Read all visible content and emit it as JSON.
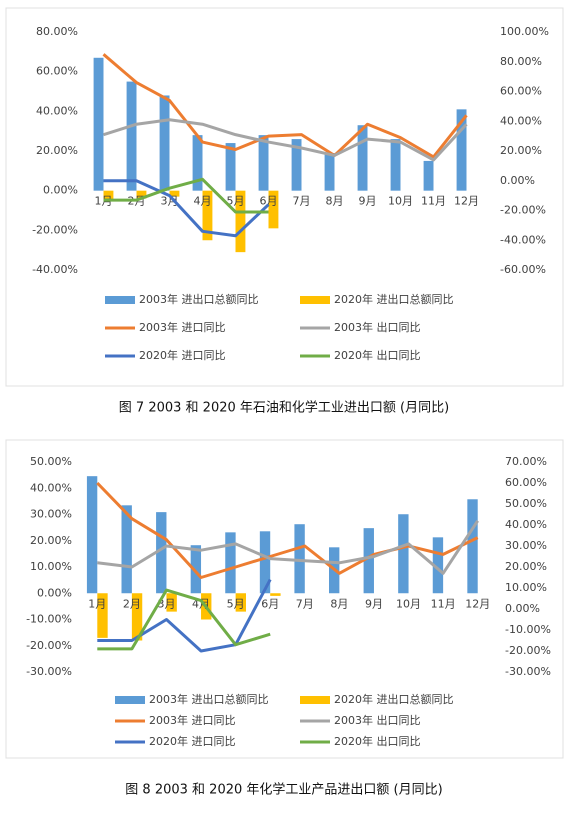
{
  "chart_data": [
    {
      "type": "combo",
      "caption": "图 7  2003 和 2020 年石油和化学工业进出口额 (月同比)",
      "categories": [
        "1月",
        "2月",
        "3月",
        "4月",
        "5月",
        "6月",
        "7月",
        "8月",
        "9月",
        "10月",
        "11月",
        "12月"
      ],
      "ylim": [
        -40,
        80
      ],
      "yticks": [
        {
          "value": -40,
          "label": "-40.00%"
        },
        {
          "value": -20,
          "label": "-20.00%"
        },
        {
          "value": 0,
          "label": "0.00%"
        },
        {
          "value": 20,
          "label": "20.00%"
        },
        {
          "value": 40,
          "label": "40.00%"
        },
        {
          "value": 60,
          "label": "60.00%"
        },
        {
          "value": 80,
          "label": "80.00%"
        }
      ],
      "y2lim": [
        -60,
        100
      ],
      "y2ticks": [
        {
          "value": -60,
          "label": "-60.00%"
        },
        {
          "value": -40,
          "label": "-40.00%"
        },
        {
          "value": -20,
          "label": "-20.00%"
        },
        {
          "value": 0,
          "label": "0.00%"
        },
        {
          "value": 20,
          "label": "20.00%"
        },
        {
          "value": 40,
          "label": "40.00%"
        },
        {
          "value": 60,
          "label": "60.00%"
        },
        {
          "value": 80,
          "label": "80.00%"
        },
        {
          "value": 100,
          "label": "100.00%"
        }
      ],
      "series": [
        {
          "name": "2003年 进出口总额同比",
          "type": "bar",
          "color": "#5b9bd5",
          "values": [
            67,
            55,
            48,
            28,
            24,
            28,
            26,
            19,
            33,
            26,
            15,
            41
          ]
        },
        {
          "name": "2020年 进出口总额同比",
          "type": "bar",
          "color": "#ffc000",
          "values": [
            -5,
            -4,
            -3,
            -25,
            -31,
            -19,
            null,
            null,
            null,
            null,
            null,
            null
          ]
        },
        {
          "name": "2003年 进口同比",
          "type": "line",
          "axis": "y2",
          "color": "#ed7d31",
          "values": [
            85,
            66,
            54,
            26,
            21,
            30,
            31,
            17,
            38,
            29,
            16,
            44
          ]
        },
        {
          "name": "2003年 出口同比",
          "type": "line",
          "axis": "y2",
          "color": "#a5a5a5",
          "values": [
            31,
            38,
            41,
            38,
            31,
            26,
            22,
            17,
            28,
            26,
            14,
            38
          ]
        },
        {
          "name": "2020年 进口同比",
          "type": "line",
          "axis": "y2",
          "color": "#4472c4",
          "values": [
            0,
            0,
            -10,
            -34,
            -37,
            -16,
            null,
            null,
            null,
            null,
            null,
            null
          ]
        },
        {
          "name": "2020年 出口同比",
          "type": "line",
          "axis": "y2",
          "color": "#70ad47",
          "values": [
            -13,
            -13,
            -5,
            1,
            -21,
            -21,
            null,
            null,
            null,
            null,
            null,
            null
          ]
        }
      ]
    },
    {
      "type": "combo",
      "caption": "图 8  2003 和 2020 年化学工业产品进出口额 (月同比)",
      "categories": [
        "1月",
        "2月",
        "3月",
        "4月",
        "5月",
        "6月",
        "7月",
        "8月",
        "9月",
        "10月",
        "11月",
        "12月"
      ],
      "ylim": [
        -30,
        50
      ],
      "yticks": [
        {
          "value": -30,
          "label": "-30.00%"
        },
        {
          "value": -20,
          "label": "-20.00%"
        },
        {
          "value": -10,
          "label": "-10.00%"
        },
        {
          "value": 0,
          "label": "0.00%"
        },
        {
          "value": 10,
          "label": "10.00%"
        },
        {
          "value": 20,
          "label": "20.00%"
        },
        {
          "value": 30,
          "label": "30.00%"
        },
        {
          "value": 40,
          "label": "40.00%"
        },
        {
          "value": 50,
          "label": "50.00%"
        }
      ],
      "y2lim": [
        -30,
        70
      ],
      "y2ticks": [
        {
          "value": -30,
          "label": "-30.00%"
        },
        {
          "value": -20,
          "label": "-20.00%"
        },
        {
          "value": -10,
          "label": "-10.00%"
        },
        {
          "value": 0,
          "label": "0.00%"
        },
        {
          "value": 10,
          "label": "10.00%"
        },
        {
          "value": 20,
          "label": "20.00%"
        },
        {
          "value": 30,
          "label": "30.00%"
        },
        {
          "value": 40,
          "label": "40.00%"
        },
        {
          "value": 50,
          "label": "50.00%"
        },
        {
          "value": 60,
          "label": "60.00%"
        },
        {
          "value": 70,
          "label": "70.00%"
        }
      ],
      "series": [
        {
          "name": "2003年 进出口总额同比",
          "type": "bar",
          "color": "#5b9bd5",
          "values": [
            44.6,
            33.5,
            30.9,
            18.3,
            23.2,
            23.6,
            26.3,
            17.5,
            24.8,
            30.1,
            21.3,
            35.8
          ]
        },
        {
          "name": "2020年 进出口总额同比",
          "type": "bar",
          "color": "#ffc000",
          "values": [
            -17,
            -18,
            -7,
            -10,
            -7,
            -1,
            null,
            null,
            null,
            null,
            null,
            null
          ]
        },
        {
          "name": "2003年 进口同比",
          "type": "line",
          "axis": "y2",
          "color": "#ed7d31",
          "values": [
            60,
            43,
            33,
            15,
            20,
            25,
            30,
            17,
            26,
            30,
            26,
            34
          ]
        },
        {
          "name": "2003年 出口同比",
          "type": "line",
          "axis": "y2",
          "color": "#a5a5a5",
          "values": [
            22,
            20,
            30,
            28,
            31,
            24,
            23,
            22,
            25,
            31,
            17,
            42
          ]
        },
        {
          "name": "2020年 进口同比",
          "type": "line",
          "axis": "y2",
          "color": "#4472c4",
          "values": [
            -15,
            -15,
            -5,
            -20,
            -17,
            14,
            null,
            null,
            null,
            null,
            null,
            null
          ]
        },
        {
          "name": "2020年 出口同比",
          "type": "line",
          "axis": "y2",
          "color": "#70ad47",
          "values": [
            -19,
            -19,
            9,
            4,
            -17,
            -12,
            null,
            null,
            null,
            null,
            null,
            null
          ]
        }
      ]
    }
  ]
}
